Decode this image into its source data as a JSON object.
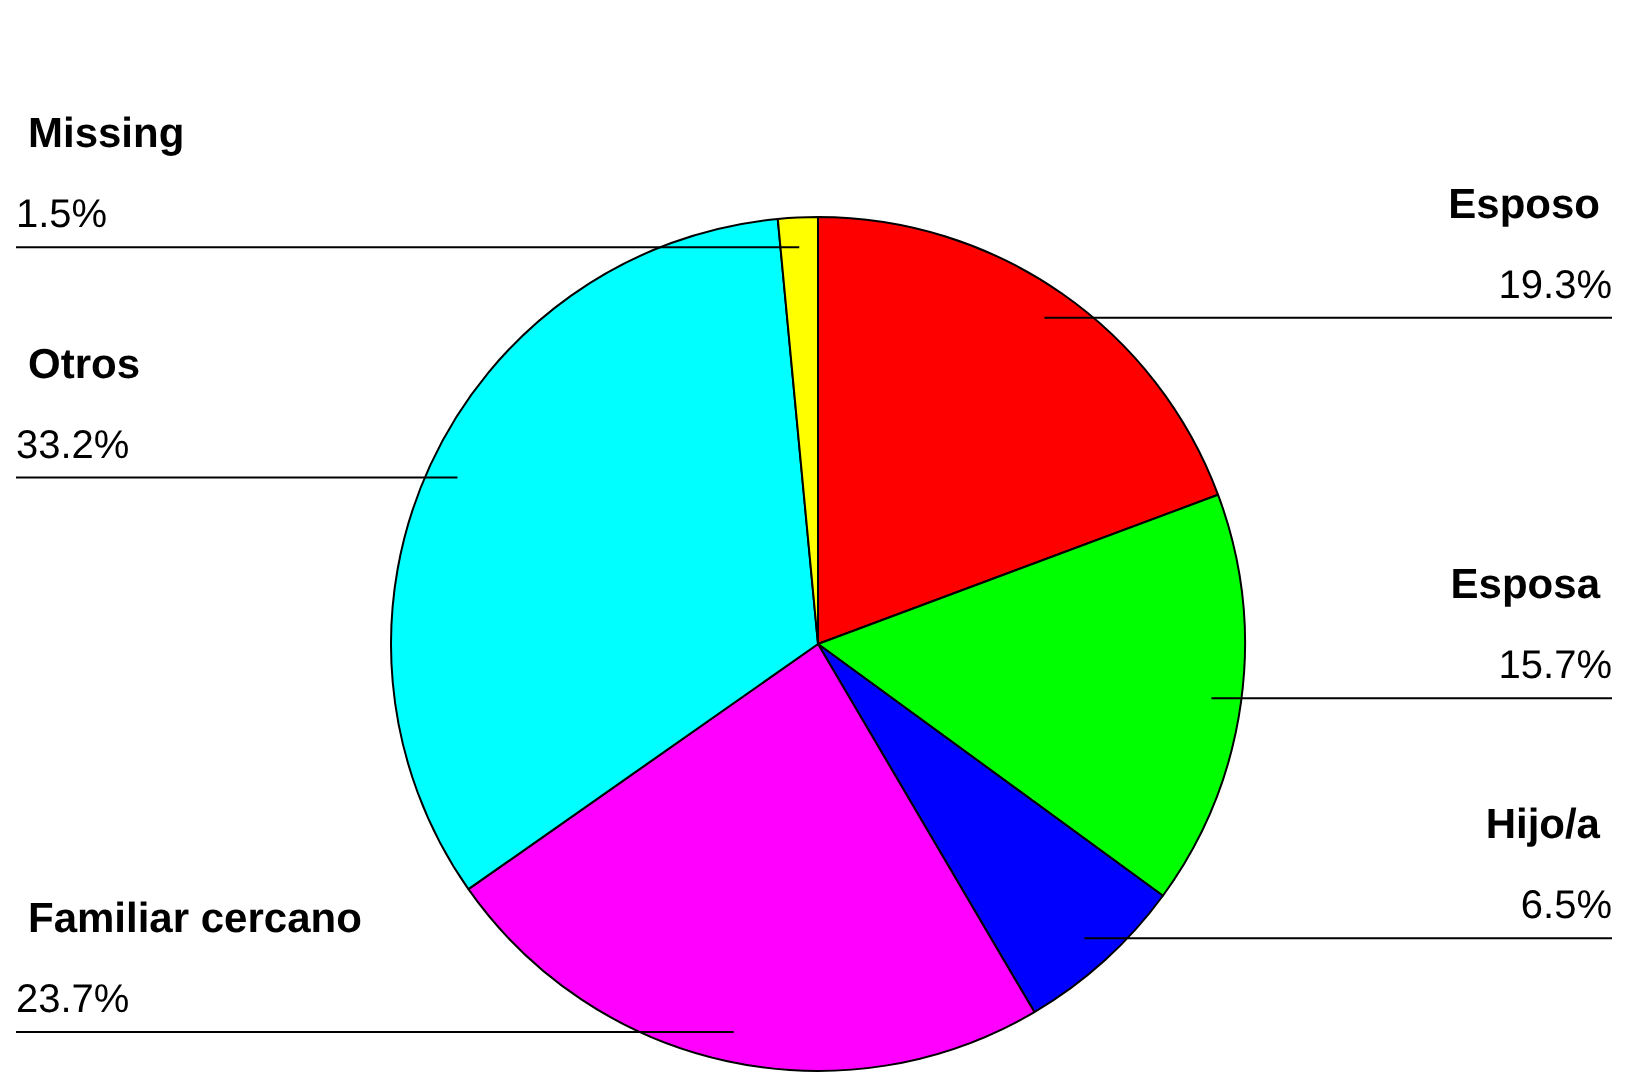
{
  "chart_data": {
    "type": "pie",
    "categories": [
      "Esposo",
      "Esposa",
      "Hijo/a",
      "Familiar cercano",
      "Otros",
      "Missing"
    ],
    "values": [
      19.3,
      15.7,
      6.5,
      23.7,
      33.2,
      1.5
    ],
    "colors": [
      "#ff0000",
      "#00ff00",
      "#0000ff",
      "#ff00ff",
      "#00ffff",
      "#ffff00"
    ],
    "value_labels": [
      "19.3%",
      "15.7%",
      "6.5%",
      "23.7%",
      "33.2%",
      "1.5%"
    ],
    "legend": false
  }
}
